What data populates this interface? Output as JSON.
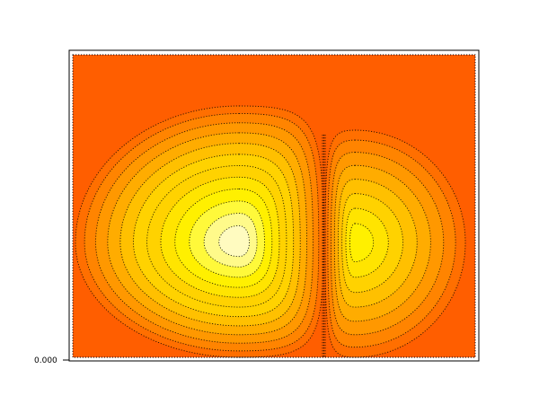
{
  "chart_data": {
    "type": "heatmap",
    "subtype": "filled-contour",
    "title": "",
    "xlabel": "",
    "ylabel": "",
    "y_tick_labels": [
      "0.000"
    ],
    "grid": false,
    "legend": "none",
    "background_color": "#ff5e00",
    "level_colors": [
      "#ff5e00",
      "#ff6f00",
      "#ff8400",
      "#ff9800",
      "#ffac00",
      "#ffc000",
      "#ffd200",
      "#ffe400",
      "#fff000",
      "#fff93a",
      "#fffa8a",
      "#fffbc0"
    ],
    "contour_line_style": "dotted",
    "contour_line_color": "#000000",
    "lobes": [
      {
        "name": "left",
        "relative_peak": 1.0,
        "level_count": 12
      },
      {
        "name": "right",
        "relative_peak": 0.8,
        "level_count": 8
      }
    ]
  }
}
